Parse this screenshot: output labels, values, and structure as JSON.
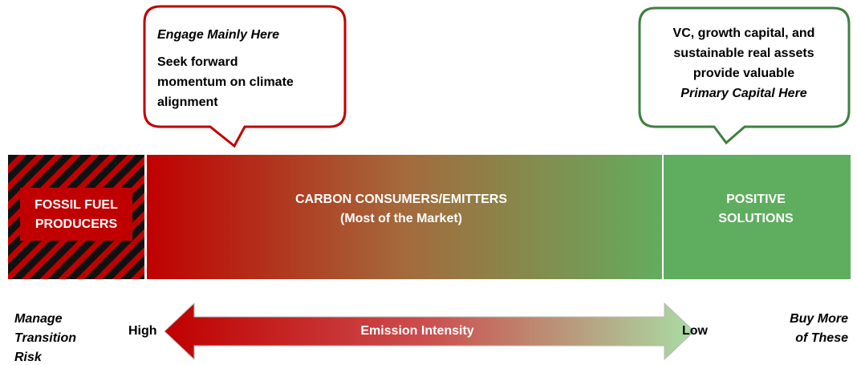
{
  "left_bubble": {
    "title": "Engage Mainly Here",
    "lines": [
      "Seek forward",
      "momentum on climate",
      "alignment"
    ]
  },
  "right_bubble": {
    "lines": [
      "VC, growth capital, and",
      "sustainable real assets",
      "provide valuable"
    ],
    "emphasis": "Primary Capital Here"
  },
  "segments": {
    "fossil": [
      "FOSSIL FUEL",
      "PRODUCERS"
    ],
    "consumers": [
      "CARBON CONSUMERS/EMITTERS",
      "(Most of the Market)"
    ],
    "solutions": [
      "POSITIVE",
      "SOLUTIONS"
    ]
  },
  "scale": {
    "left_note": [
      "Manage",
      "Transition",
      "Risk"
    ],
    "high": "High",
    "arrow_label": "Emission Intensity",
    "low": "Low",
    "right_note": [
      "Buy More",
      "of These"
    ]
  }
}
